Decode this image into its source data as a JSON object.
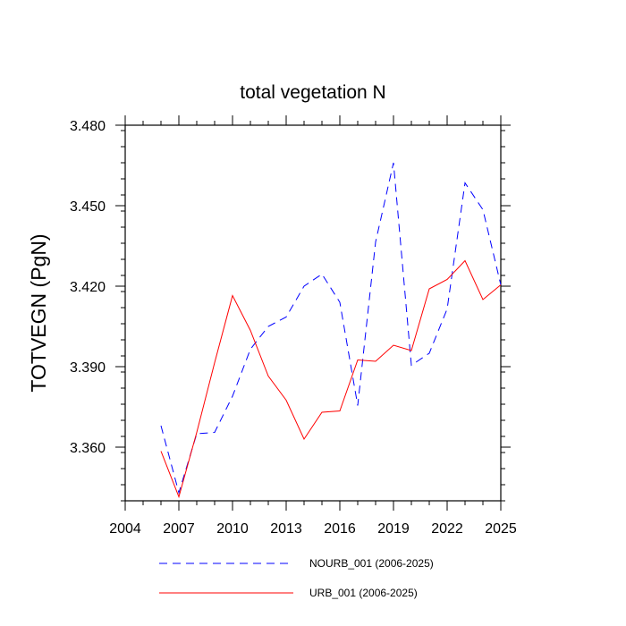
{
  "chart_data": {
    "type": "line",
    "title": "total vegetation N",
    "xlabel": "",
    "ylabel": "TOTVEGN  (PgN)",
    "xlim": [
      2004,
      2025
    ],
    "ylim": [
      3.34,
      3.48
    ],
    "x_ticks": [
      2004,
      2007,
      2010,
      2013,
      2016,
      2019,
      2022,
      2025
    ],
    "x_tick_labels": [
      "2004",
      "2007",
      "2010",
      "2013",
      "2016",
      "2019",
      "2022",
      "2025"
    ],
    "y_ticks": [
      3.36,
      3.39,
      3.42,
      3.45,
      3.48
    ],
    "y_tick_labels": [
      "3.360",
      "3.390",
      "3.420",
      "3.450",
      "3.480"
    ],
    "grid": false,
    "legend_position": "bottom",
    "x": [
      2006,
      2007,
      2008,
      2009,
      2010,
      2011,
      2012,
      2013,
      2014,
      2015,
      2016,
      2017,
      2018,
      2019,
      2020,
      2021,
      2022,
      2023,
      2024,
      2025
    ],
    "series": [
      {
        "name": "NOURB_001 (2006-2025)",
        "color": "#0000ff",
        "style": "dashed",
        "values": [
          3.368,
          3.343,
          3.365,
          3.3655,
          3.379,
          3.3965,
          3.405,
          3.4085,
          3.42,
          3.4245,
          3.414,
          3.3755,
          3.4365,
          3.466,
          3.3905,
          3.395,
          3.4115,
          3.4585,
          3.4485,
          3.4205
        ]
      },
      {
        "name": "URB_001 (2006-2025)",
        "color": "#ff0000",
        "style": "solid",
        "values": [
          3.3585,
          3.3415,
          3.3655,
          3.3915,
          3.4165,
          3.4035,
          3.3865,
          3.3775,
          3.363,
          3.373,
          3.3735,
          3.3925,
          3.392,
          3.398,
          3.396,
          3.419,
          3.4225,
          3.4295,
          3.415,
          3.4205
        ]
      }
    ]
  }
}
